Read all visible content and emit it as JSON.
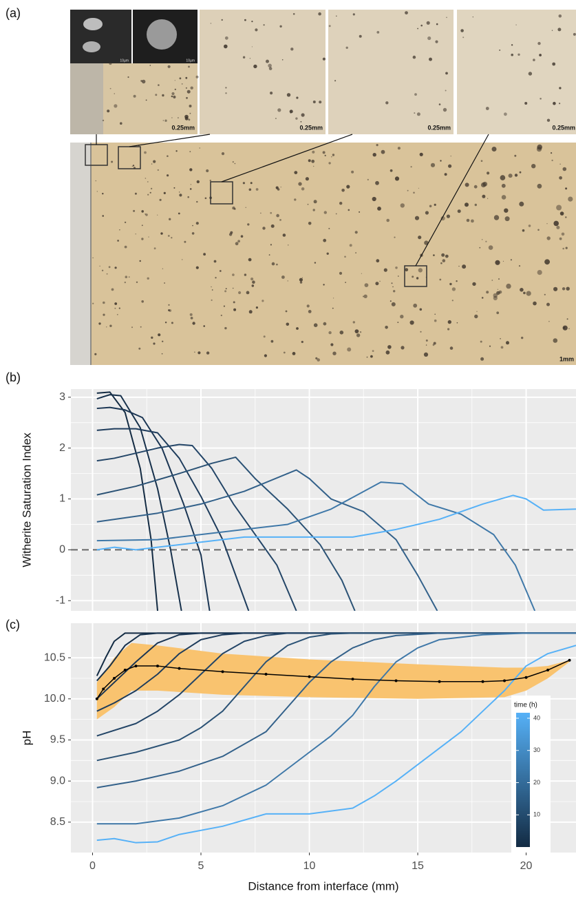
{
  "figure": {
    "panel_labels": [
      "(a)",
      "(b)",
      "(c)"
    ],
    "scale_bars": [
      "0.25mm",
      "0.25mm",
      "0.25mm",
      "0.25mm",
      "1mm"
    ],
    "sem_scale_bars": [
      "10µm",
      "10µm"
    ]
  },
  "chart_data": [
    {
      "type": "line",
      "y_label": "Witherite Saturation Index",
      "xlim": [
        -1,
        22.3
      ],
      "ylim": [
        -1.2,
        3.16
      ],
      "xticks": [
        0,
        5,
        10,
        15,
        20
      ],
      "x_tick_labels": false,
      "yticks": [
        -1,
        0,
        1,
        2,
        3
      ],
      "grid": true,
      "hline": 0,
      "series": [
        {
          "color": "#132b43",
          "x": [
            0.2,
            0.8,
            1.5,
            2.2,
            2.7,
            3.0
          ],
          "values": [
            3.08,
            3.1,
            2.7,
            1.6,
            0.2,
            -1.2
          ]
        },
        {
          "color": "#16304b",
          "x": [
            0.2,
            0.8,
            1.3,
            2.2,
            3.0,
            3.6,
            4.1
          ],
          "values": [
            2.97,
            3.05,
            3.03,
            2.4,
            1.2,
            0.0,
            -1.2
          ]
        },
        {
          "color": "#1a3553",
          "x": [
            0.2,
            0.8,
            1.5,
            2.3,
            3.2,
            4.2,
            5.0,
            5.4
          ],
          "values": [
            2.78,
            2.8,
            2.75,
            2.6,
            2.0,
            0.9,
            -0.1,
            -1.2
          ]
        },
        {
          "color": "#1e3c5c",
          "x": [
            0.2,
            1,
            2,
            3,
            4,
            5,
            6,
            7.2
          ],
          "values": [
            2.35,
            2.38,
            2.38,
            2.3,
            1.8,
            1.05,
            0.2,
            -1.2
          ]
        },
        {
          "color": "#234567",
          "x": [
            0.2,
            1,
            2,
            3,
            4,
            4.6,
            5.5,
            6.5,
            7.5,
            8.5,
            9.4
          ],
          "values": [
            1.75,
            1.8,
            1.9,
            2.0,
            2.07,
            2.05,
            1.6,
            0.9,
            0.3,
            -0.3,
            -1.2
          ]
        },
        {
          "color": "#2b5275",
          "x": [
            0.2,
            2,
            4,
            5.5,
            6.6,
            7.5,
            9,
            10.5,
            11.5,
            12.1
          ],
          "values": [
            1.08,
            1.25,
            1.5,
            1.7,
            1.82,
            1.4,
            0.8,
            0.1,
            -0.6,
            -1.2
          ]
        },
        {
          "color": "#33618a",
          "x": [
            0.2,
            3,
            5,
            7,
            9.4,
            10,
            11,
            12.5,
            14,
            15,
            15.9
          ],
          "values": [
            0.55,
            0.72,
            0.9,
            1.15,
            1.57,
            1.4,
            1.0,
            0.75,
            0.2,
            -0.5,
            -1.2
          ]
        },
        {
          "color": "#3f78a8",
          "x": [
            0.2,
            3,
            6,
            9,
            11,
            13.3,
            14.3,
            15.5,
            17,
            18.5,
            19.5,
            20.4
          ],
          "values": [
            0.18,
            0.2,
            0.35,
            0.5,
            0.8,
            1.33,
            1.3,
            0.9,
            0.7,
            0.3,
            -0.3,
            -1.2
          ]
        },
        {
          "color": "#56b1f7",
          "x": [
            0.2,
            1,
            2,
            3,
            5,
            7,
            9,
            12,
            14,
            16,
            18,
            19.4,
            20,
            20.8,
            22.3
          ],
          "values": [
            0.0,
            0.05,
            0.0,
            0.05,
            0.15,
            0.25,
            0.25,
            0.25,
            0.4,
            0.6,
            0.9,
            1.07,
            1.0,
            0.78,
            0.8
          ]
        }
      ]
    },
    {
      "type": "line",
      "x_label": "Distance from interface (mm)",
      "y_label": "pH",
      "xlim": [
        -1,
        22.3
      ],
      "ylim": [
        8.13,
        10.92
      ],
      "xticks": [
        0,
        5,
        10,
        15,
        20
      ],
      "yticks": [
        8.5,
        {
          "value": 9,
          "label": "9.0"
        },
        9.5,
        {
          "value": 10,
          "label": "10.0"
        },
        10.5
      ],
      "grid": true,
      "band": {
        "color": "#f9c36f",
        "x": [
          0.2,
          1,
          1.8,
          3,
          6,
          10,
          15,
          19,
          20,
          21,
          22
        ],
        "upper": [
          10.2,
          10.5,
          10.68,
          10.65,
          10.55,
          10.48,
          10.42,
          10.38,
          10.38,
          10.4,
          10.47
        ],
        "lower": [
          9.75,
          9.9,
          10.1,
          10.1,
          10.05,
          10.02,
          10.0,
          10.02,
          10.1,
          10.25,
          10.45
        ]
      },
      "mean": {
        "color": "#000000",
        "x": [
          0.2,
          0.5,
          1,
          1.5,
          2,
          3,
          4,
          6,
          8,
          10,
          12,
          14,
          16,
          18,
          19,
          20,
          21,
          22
        ],
        "values": [
          10.0,
          10.12,
          10.25,
          10.35,
          10.4,
          10.4,
          10.37,
          10.33,
          10.3,
          10.27,
          10.24,
          10.22,
          10.21,
          10.21,
          10.22,
          10.26,
          10.35,
          10.47
        ]
      },
      "series": [
        {
          "color": "#132b43",
          "x": [
            0.2,
            0.6,
            1,
            1.5,
            22.3
          ],
          "values": [
            10.28,
            10.5,
            10.7,
            10.8,
            10.8
          ]
        },
        {
          "color": "#16304b",
          "x": [
            0.2,
            0.8,
            1.5,
            2.2,
            3,
            22.3
          ],
          "values": [
            10.22,
            10.4,
            10.65,
            10.78,
            10.8,
            10.8
          ]
        },
        {
          "color": "#1a3553",
          "x": [
            0.2,
            1,
            2,
            3,
            4,
            5,
            22.3
          ],
          "values": [
            10.0,
            10.2,
            10.45,
            10.68,
            10.78,
            10.8,
            10.8
          ]
        },
        {
          "color": "#1e3c5c",
          "x": [
            0.2,
            1,
            2,
            3,
            4,
            5,
            6,
            7,
            22.3
          ],
          "values": [
            9.85,
            9.95,
            10.1,
            10.3,
            10.55,
            10.72,
            10.78,
            10.8,
            10.8
          ]
        },
        {
          "color": "#234567",
          "x": [
            0.2,
            2,
            3,
            4,
            5,
            6,
            7,
            8,
            9,
            22.3
          ],
          "values": [
            9.55,
            9.7,
            9.85,
            10.05,
            10.3,
            10.55,
            10.7,
            10.77,
            10.8,
            10.8
          ]
        },
        {
          "color": "#2b5275",
          "x": [
            0.2,
            2,
            4,
            5,
            6,
            7,
            8,
            9,
            10,
            11,
            12,
            22.3
          ],
          "values": [
            9.25,
            9.35,
            9.5,
            9.65,
            9.85,
            10.15,
            10.45,
            10.65,
            10.75,
            10.79,
            10.8,
            10.8
          ]
        },
        {
          "color": "#33618a",
          "x": [
            0.2,
            2,
            4,
            6,
            8,
            9,
            10,
            11,
            12,
            13,
            14,
            16,
            22.3
          ],
          "values": [
            8.92,
            9.0,
            9.12,
            9.3,
            9.6,
            9.9,
            10.2,
            10.45,
            10.62,
            10.72,
            10.77,
            10.8,
            10.8
          ]
        },
        {
          "color": "#3f78a8",
          "x": [
            0.2,
            1,
            2,
            4,
            6,
            8,
            10,
            11,
            12,
            13,
            14,
            15,
            16,
            18,
            20,
            22.3
          ],
          "values": [
            8.48,
            8.48,
            8.48,
            8.55,
            8.7,
            8.95,
            9.35,
            9.55,
            9.8,
            10.15,
            10.45,
            10.62,
            10.72,
            10.78,
            10.8,
            10.8
          ]
        },
        {
          "color": "#56b1f7",
          "x": [
            0.2,
            1,
            2,
            3,
            4,
            6,
            8,
            10,
            12,
            13,
            14,
            15,
            16,
            17,
            18,
            19,
            20,
            21,
            22.3
          ],
          "values": [
            8.28,
            8.3,
            8.25,
            8.26,
            8.35,
            8.45,
            8.6,
            8.6,
            8.67,
            8.82,
            9.0,
            9.2,
            9.4,
            9.6,
            9.85,
            10.1,
            10.4,
            10.55,
            10.65
          ]
        }
      ],
      "colorbar": {
        "title": "time (h)",
        "lim": [
          0,
          41.7
        ],
        "ticks": [
          10,
          20,
          30,
          40
        ],
        "colors": [
          "#132b43",
          "#56b1f7"
        ]
      }
    }
  ]
}
